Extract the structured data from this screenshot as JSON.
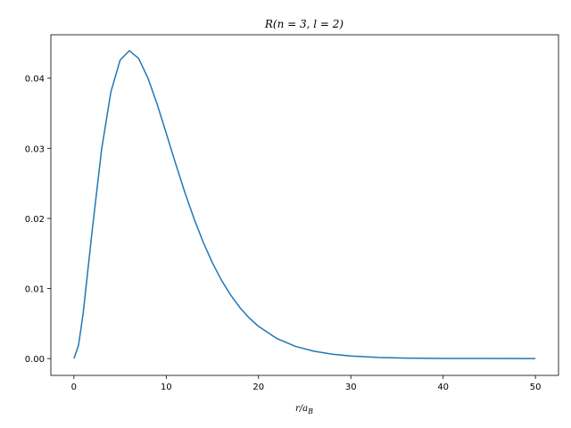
{
  "chart_data": {
    "type": "line",
    "title": "R(n = 3, l = 2)",
    "x_label": {
      "main": "r/a",
      "sub": "B"
    },
    "x": [
      0,
      0.5,
      1,
      2,
      3,
      4,
      5,
      6,
      7,
      8,
      9,
      10,
      11,
      12,
      13,
      14,
      15,
      16,
      17,
      18,
      19,
      20,
      22,
      24,
      26,
      28,
      30,
      33,
      36,
      40,
      45,
      50
    ],
    "series": [
      {
        "color": "#1f77b4",
        "values": [
          0,
          0.00191,
          0.00646,
          0.01852,
          0.02985,
          0.03803,
          0.04257,
          0.04393,
          0.04284,
          0.04009,
          0.03636,
          0.03216,
          0.02789,
          0.02378,
          0.02,
          0.01662,
          0.01367,
          0.01114,
          0.00902,
          0.00724,
          0.00578,
          0.00459,
          0.00285,
          0.00174,
          0.00105,
          0.00062,
          0.00037,
          0.00016,
          7e-05,
          2e-05,
          1e-05,
          0
        ]
      }
    ],
    "xlim": [
      -2.5,
      52.5
    ],
    "ylim": [
      -0.0024,
      0.0462
    ],
    "xticks": [
      0,
      10,
      20,
      30,
      40,
      50
    ],
    "yticks": [
      {
        "value": 0,
        "label": "0.00"
      },
      {
        "value": 0.01,
        "label": "0.01"
      },
      {
        "value": 0.02,
        "label": "0.02"
      },
      {
        "value": 0.03,
        "label": "0.03"
      },
      {
        "value": 0.04,
        "label": "0.04"
      }
    ]
  }
}
